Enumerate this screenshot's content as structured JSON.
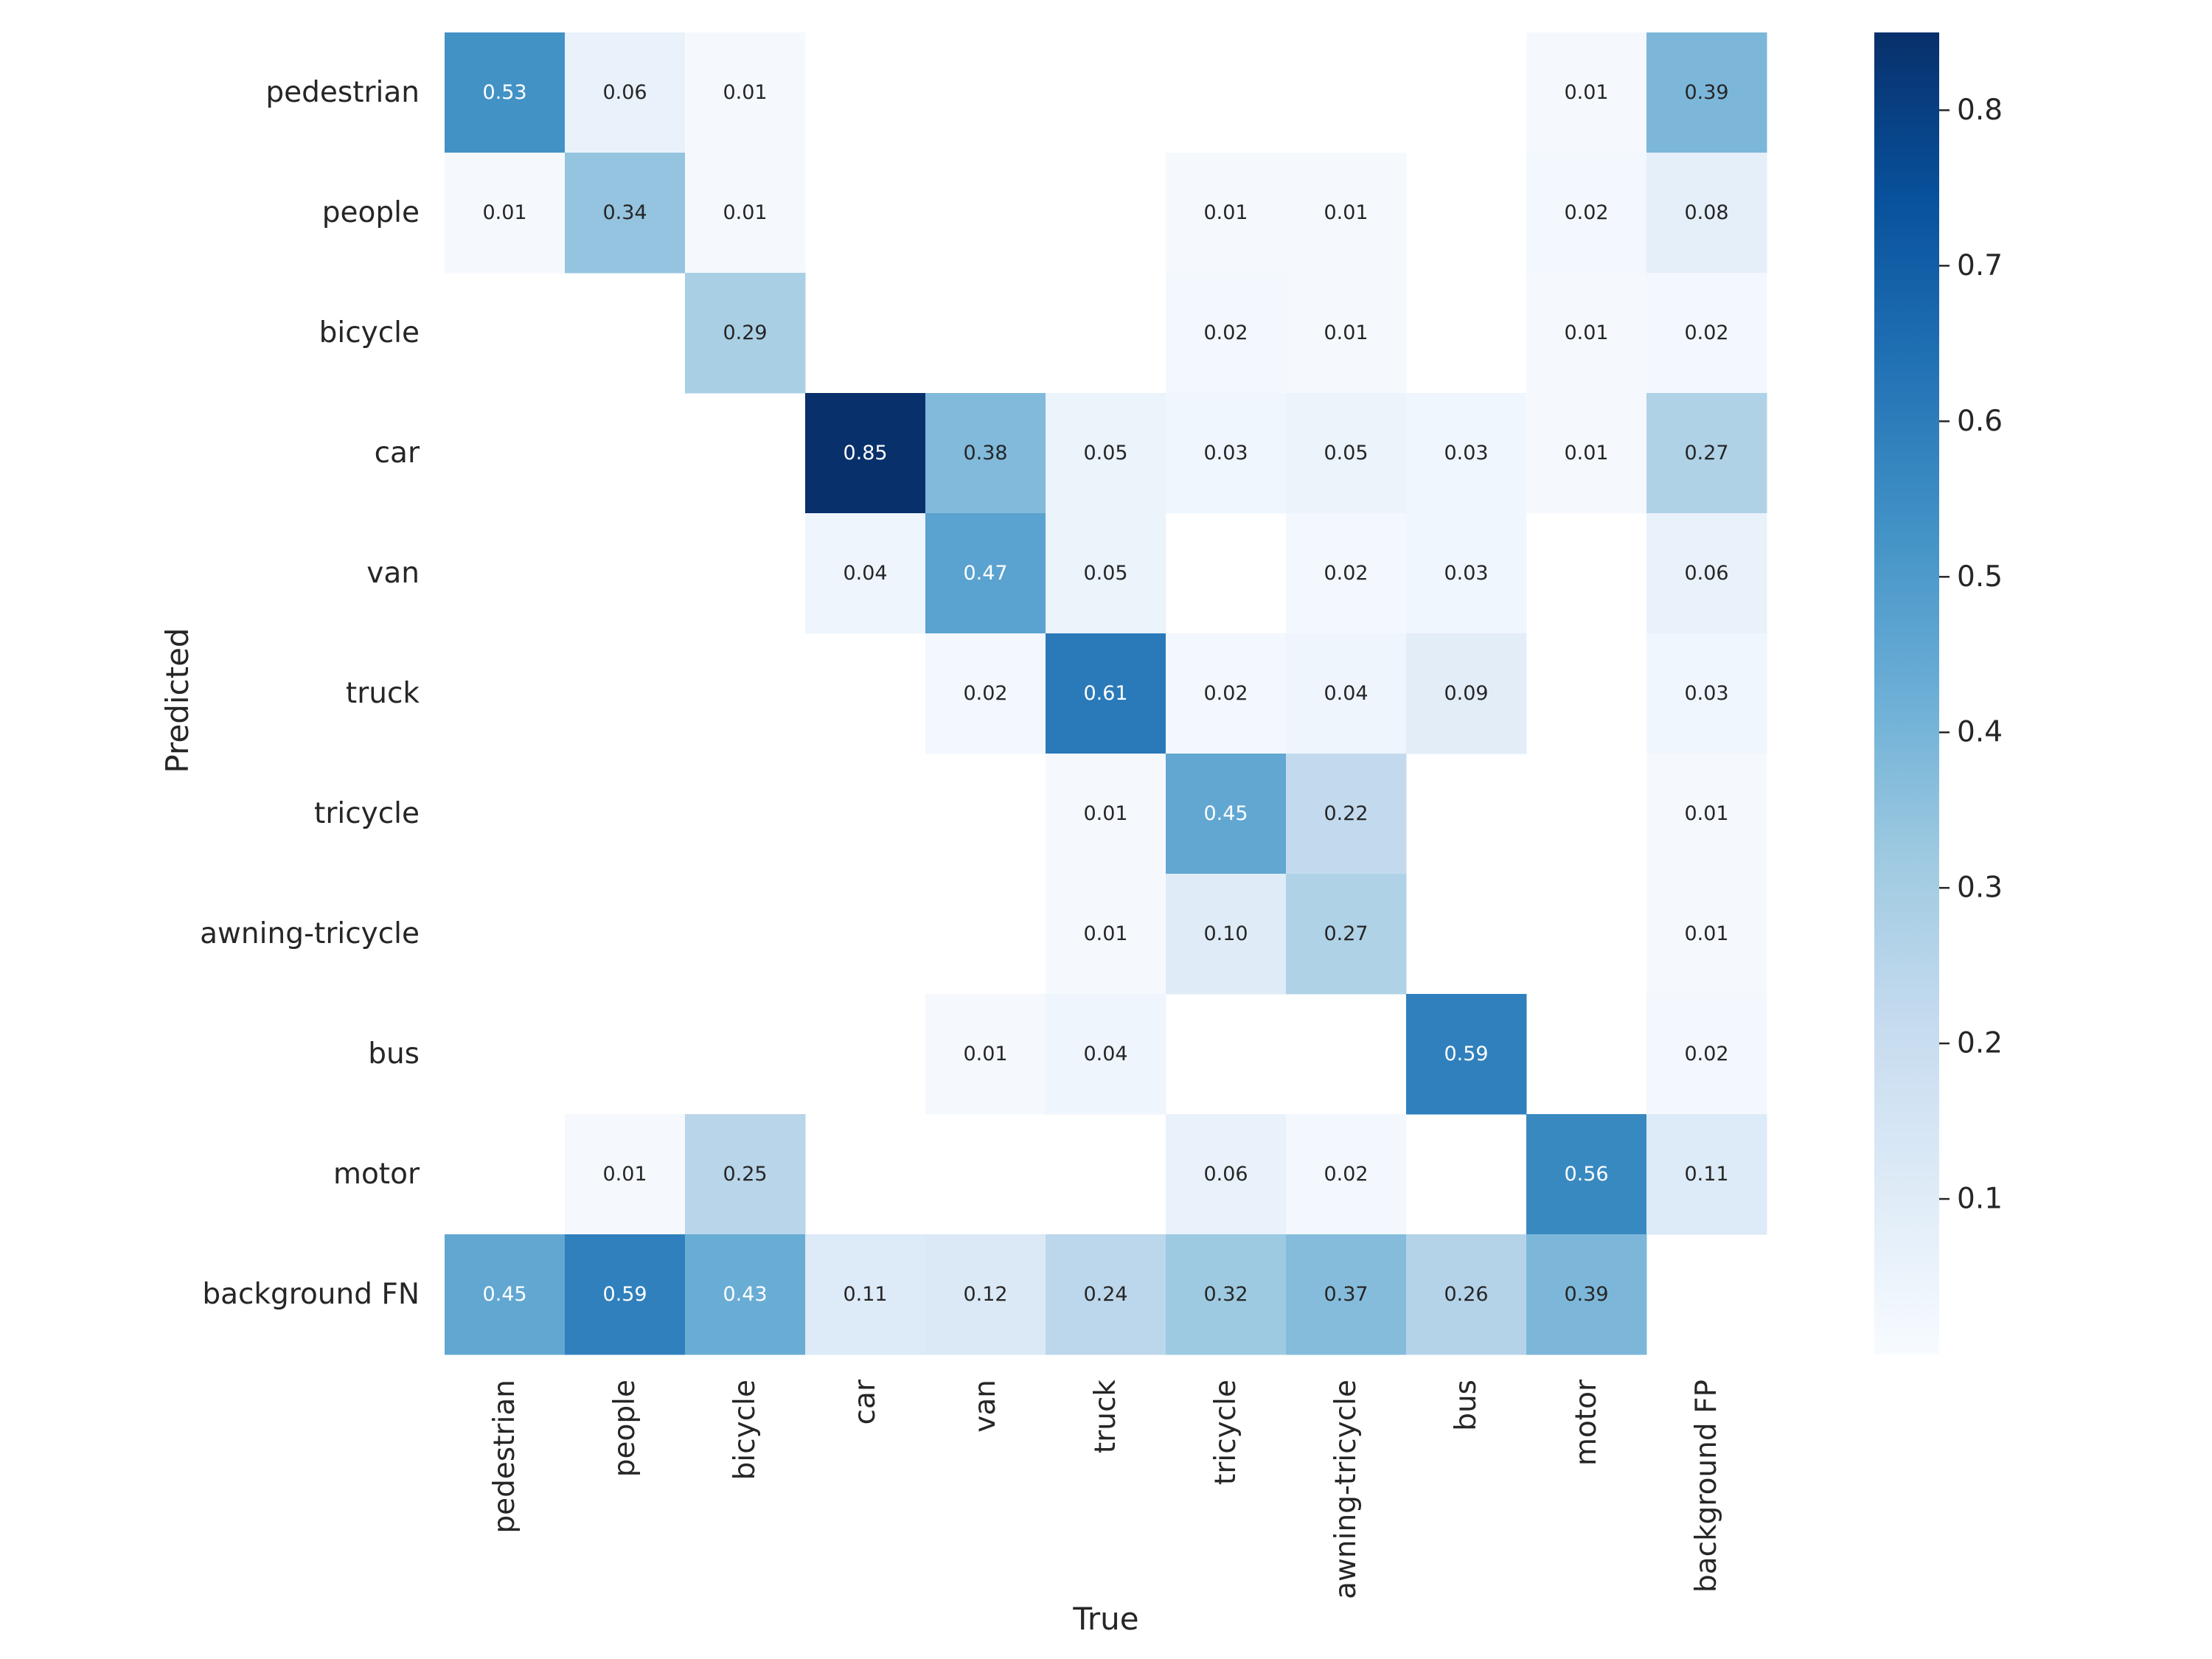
{
  "chart_data": {
    "type": "heatmap",
    "title": "",
    "xlabel": "True",
    "ylabel": "Predicted",
    "x_categories": [
      "pedestrian",
      "people",
      "bicycle",
      "car",
      "van",
      "truck",
      "tricycle",
      "awning-tricycle",
      "bus",
      "motor",
      "background FP"
    ],
    "y_categories": [
      "pedestrian",
      "people",
      "bicycle",
      "car",
      "van",
      "truck",
      "tricycle",
      "awning-tricycle",
      "bus",
      "motor",
      "background FN"
    ],
    "values": [
      [
        0.53,
        0.06,
        0.01,
        null,
        null,
        null,
        null,
        null,
        null,
        0.01,
        0.39
      ],
      [
        0.01,
        0.34,
        0.01,
        null,
        null,
        null,
        0.01,
        0.01,
        null,
        0.02,
        0.08
      ],
      [
        null,
        null,
        0.29,
        null,
        null,
        null,
        0.02,
        0.01,
        null,
        0.01,
        0.02
      ],
      [
        null,
        null,
        null,
        0.85,
        0.38,
        0.05,
        0.03,
        0.05,
        0.03,
        0.01,
        0.27
      ],
      [
        null,
        null,
        null,
        0.04,
        0.47,
        0.05,
        null,
        0.02,
        0.03,
        null,
        0.06
      ],
      [
        null,
        null,
        null,
        null,
        0.02,
        0.61,
        0.02,
        0.04,
        0.09,
        null,
        0.03
      ],
      [
        null,
        null,
        null,
        null,
        null,
        0.01,
        0.45,
        0.22,
        null,
        null,
        0.01
      ],
      [
        null,
        null,
        null,
        null,
        null,
        0.01,
        0.1,
        0.27,
        null,
        null,
        0.01
      ],
      [
        null,
        null,
        null,
        null,
        0.01,
        0.04,
        null,
        null,
        0.59,
        null,
        0.02
      ],
      [
        null,
        0.01,
        0.25,
        null,
        null,
        null,
        0.06,
        0.02,
        null,
        0.56,
        0.11
      ],
      [
        0.45,
        0.59,
        0.43,
        0.11,
        0.12,
        0.24,
        0.32,
        0.37,
        0.26,
        0.39,
        null
      ]
    ],
    "colormap": "Blues",
    "vmin": 0.0,
    "vmax": 0.85,
    "colorbar_ticks": [
      0.1,
      0.2,
      0.3,
      0.4,
      0.5,
      0.6,
      0.7,
      0.8
    ],
    "colorbar_tick_labels": [
      "0.1",
      "0.2",
      "0.3",
      "0.4",
      "0.5",
      "0.6",
      "0.7",
      "0.8"
    ]
  }
}
